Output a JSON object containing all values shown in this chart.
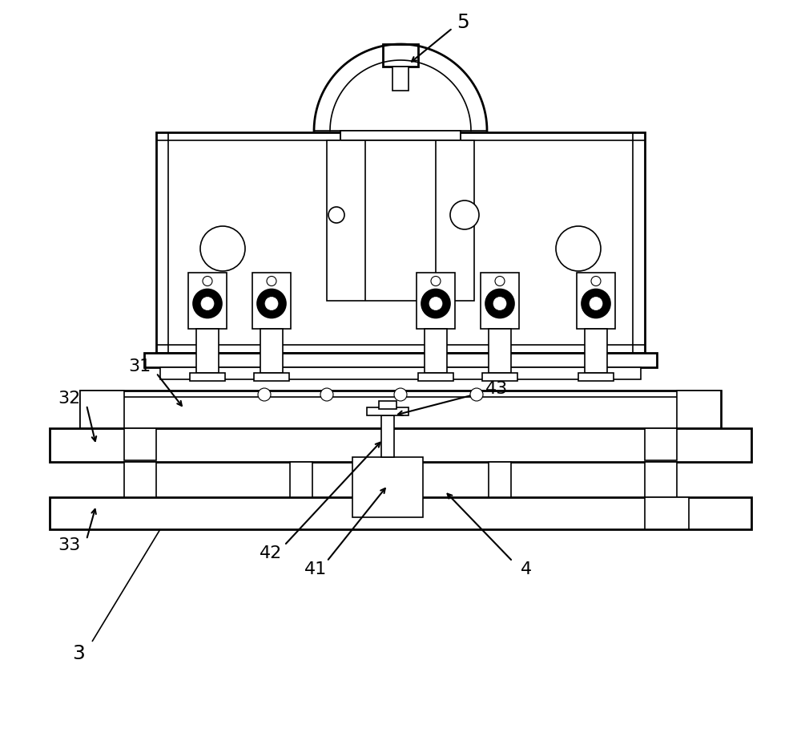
{
  "bg_color": "#ffffff",
  "lc": "#000000",
  "lw": 1.2,
  "tlw": 2.0,
  "fs": 16,
  "fig_w": 10.0,
  "fig_h": 9.19,
  "dpi": 100
}
